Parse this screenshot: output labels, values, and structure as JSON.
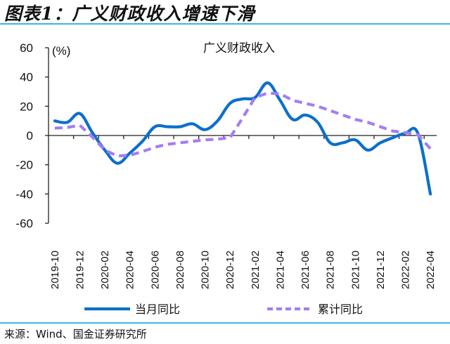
{
  "figure": {
    "title": "图表1：广义财政收入增速下滑",
    "source": "来源：Wind、国金证券研究所"
  },
  "chart_data": {
    "type": "line",
    "title": "广义财政收入",
    "xlabel": "",
    "ylabel": "(%)",
    "ylim": [
      -60,
      60
    ],
    "yticks": [
      -60,
      -40,
      -20,
      0,
      20,
      40,
      60
    ],
    "grid": false,
    "legend_position": "bottom",
    "x": [
      "2019-10",
      "2019-11",
      "2019-12",
      "2020-01",
      "2020-02",
      "2020-03",
      "2020-04",
      "2020-05",
      "2020-06",
      "2020-07",
      "2020-08",
      "2020-09",
      "2020-10",
      "2020-11",
      "2020-12",
      "2021-01",
      "2021-02",
      "2021-03",
      "2021-04",
      "2021-05",
      "2021-06",
      "2021-07",
      "2021-08",
      "2021-09",
      "2021-10",
      "2021-11",
      "2021-12",
      "2022-01",
      "2022-02",
      "2022-03",
      "2022-04"
    ],
    "x_tick_labels": [
      "2019-10",
      "2019-12",
      "2020-02",
      "2020-04",
      "2020-06",
      "2020-08",
      "2020-10",
      "2020-12",
      "2021-02",
      "2021-04",
      "2021-06",
      "2021-08",
      "2021-10",
      "2021-12",
      "2022-02",
      "2022-04"
    ],
    "series": [
      {
        "name": "当月同比",
        "color": "#0b6fcb",
        "style": "solid",
        "values": [
          10,
          9,
          15,
          2,
          -10,
          -19,
          -12,
          -4,
          6,
          6,
          6,
          8,
          4,
          10,
          22,
          25,
          26,
          36,
          24,
          11,
          14,
          9,
          -5,
          -5,
          -3,
          -10,
          -5,
          -1.5,
          1.5,
          1.5,
          -40
        ]
      },
      {
        "name": "累计同比",
        "color": "#a57cf5",
        "style": "dashed",
        "values": [
          5,
          5.5,
          7,
          -1,
          -10,
          -14,
          -13.5,
          -11,
          -8,
          -6,
          -5,
          -4,
          -3,
          -2.5,
          -1.5,
          12,
          26,
          29,
          28.5,
          24,
          22,
          20,
          17,
          14,
          11,
          9,
          6,
          3,
          2,
          0.5,
          -9
        ]
      }
    ]
  }
}
